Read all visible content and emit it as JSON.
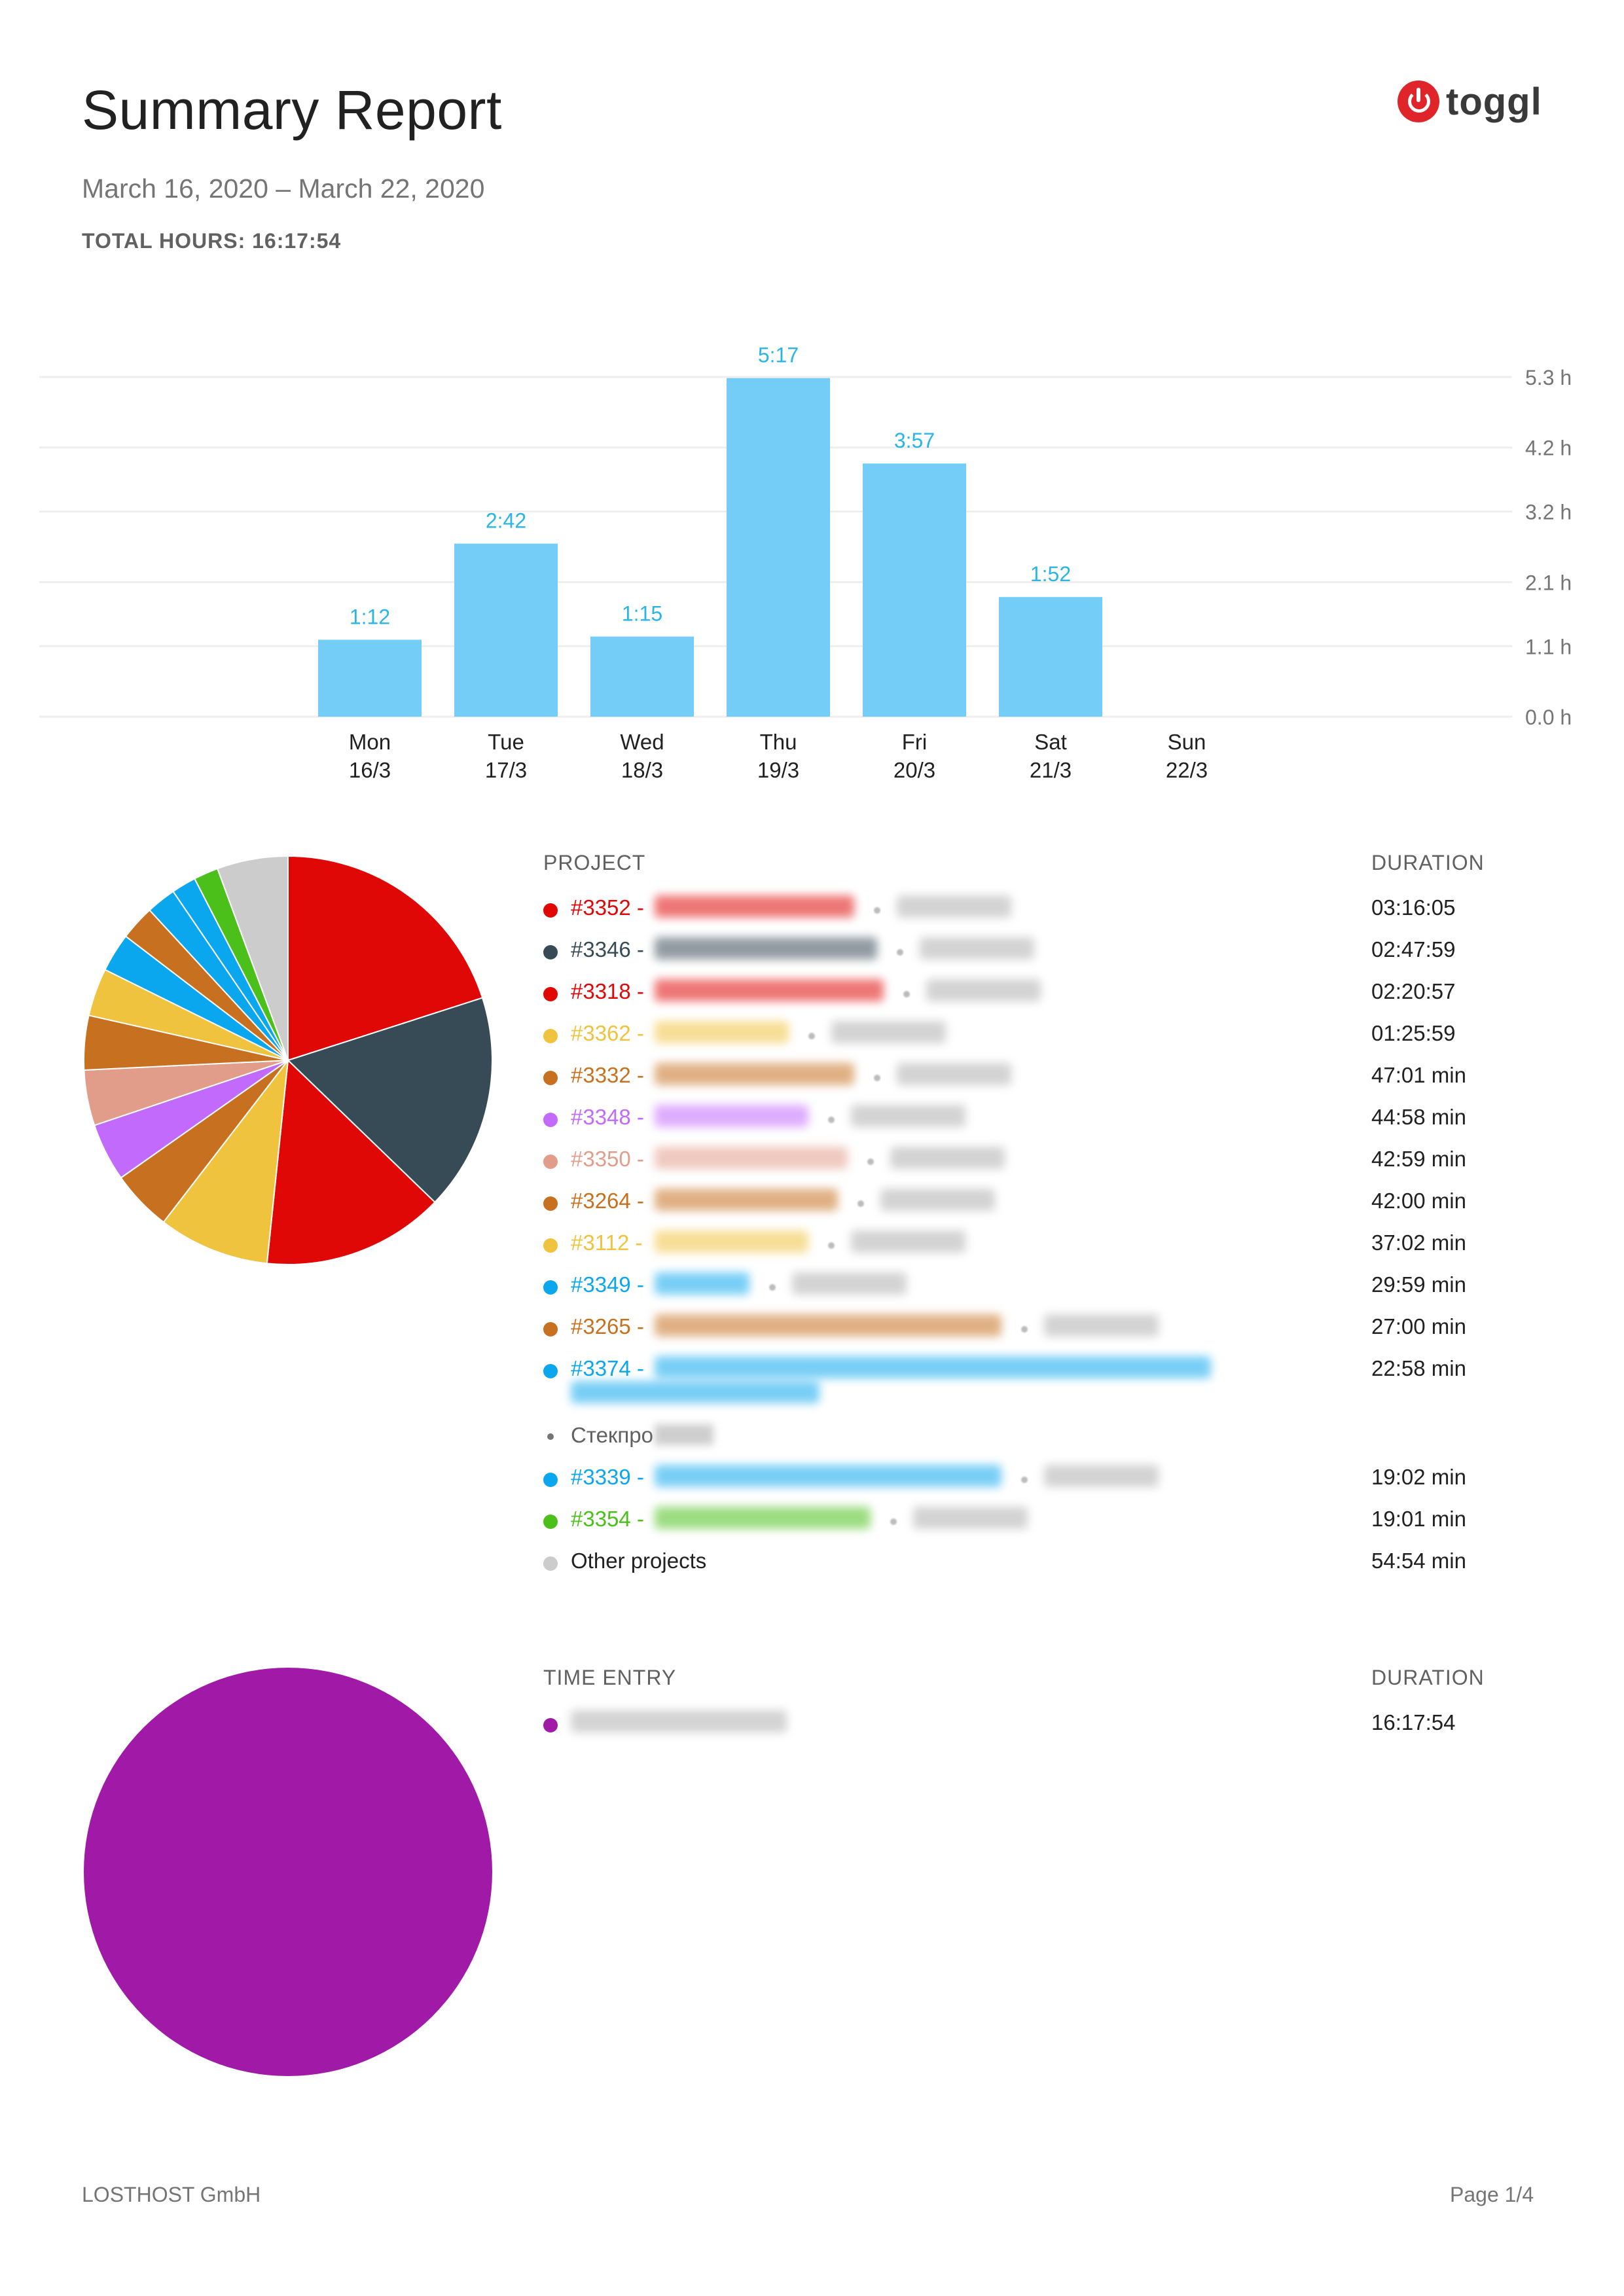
{
  "header": {
    "title": "Summary Report",
    "date_range": "March 16, 2020 – March 22, 2020",
    "total_label": "TOTAL HOURS: 16:17:54",
    "logo_text": "toggl"
  },
  "colors": {
    "bar": "#74cdf7",
    "bar_label": "#2bb5e6",
    "axis_text": "#757575",
    "grid": "#eeeeee",
    "brand": "#e0252a"
  },
  "chart_data": [
    {
      "type": "bar",
      "categories": [
        "Mon 16/3",
        "Tue 17/3",
        "Wed 18/3",
        "Thu 19/3",
        "Fri 20/3",
        "Sat 21/3",
        "Sun 22/3"
      ],
      "category_days": [
        "Mon",
        "Tue",
        "Wed",
        "Thu",
        "Fri",
        "Sat",
        "Sun"
      ],
      "category_dates": [
        "16/3",
        "17/3",
        "18/3",
        "19/3",
        "20/3",
        "21/3",
        "22/3"
      ],
      "values": [
        1.2,
        2.7,
        1.25,
        5.283,
        3.95,
        1.867,
        0
      ],
      "data_labels": [
        "1:12",
        "2:42",
        "1:15",
        "5:17",
        "3:57",
        "1:52",
        ""
      ],
      "yticks": [
        0.0,
        1.1,
        2.1,
        3.2,
        4.2,
        5.3
      ],
      "ytick_labels": [
        "0.0 h",
        "1.1 h",
        "2.1 h",
        "3.2 h",
        "4.2 h",
        "5.3 h"
      ],
      "ylim": [
        0,
        5.3
      ],
      "grid": true,
      "yaxis_side": "right"
    },
    {
      "type": "pie",
      "column_label": "PROJECT",
      "duration_label": "DURATION",
      "slices": [
        {
          "code": "#3352",
          "duration": "03:16:05",
          "minutes": 196.08,
          "color": "#e00707"
        },
        {
          "code": "#3346",
          "duration": "02:47:59",
          "minutes": 167.98,
          "color": "#374b56"
        },
        {
          "code": "#3318",
          "duration": "02:20:57",
          "minutes": 140.95,
          "color": "#e00707"
        },
        {
          "code": "#3362",
          "duration": "01:25:59",
          "minutes": 85.98,
          "color": "#f0c33f"
        },
        {
          "code": "#3332",
          "duration": "47:01 min",
          "minutes": 47.02,
          "color": "#c7701f"
        },
        {
          "code": "#3348",
          "duration": "44:58 min",
          "minutes": 44.97,
          "color": "#c26afc"
        },
        {
          "code": "#3350",
          "duration": "42:59 min",
          "minutes": 42.98,
          "color": "#e29d8a"
        },
        {
          "code": "#3264",
          "duration": "42:00 min",
          "minutes": 42.0,
          "color": "#c7701f"
        },
        {
          "code": "#3112",
          "duration": "37:02 min",
          "minutes": 37.03,
          "color": "#f0c33f"
        },
        {
          "code": "#3349",
          "duration": "29:59 min",
          "minutes": 29.98,
          "color": "#0ba7ee"
        },
        {
          "code": "#3265",
          "duration": "27:00 min",
          "minutes": 27.0,
          "color": "#c7701f"
        },
        {
          "code": "#3374",
          "duration": "22:58 min",
          "minutes": 22.97,
          "color": "#0ba7ee"
        },
        {
          "code": "#3339",
          "duration": "19:02 min",
          "minutes": 19.03,
          "color": "#0ba7ee"
        },
        {
          "code": "#3354",
          "duration": "19:01 min",
          "minutes": 19.02,
          "color": "#4cc01a"
        },
        {
          "code": "Other projects",
          "duration": "54:54 min",
          "minutes": 54.9,
          "color": "#cccccc"
        }
      ],
      "sub_entry": "Стекпро"
    },
    {
      "type": "pie",
      "column_label": "TIME ENTRY",
      "duration_label": "DURATION",
      "slices": [
        {
          "duration": "16:17:54",
          "minutes": 977.9,
          "color": "#a01aa7"
        }
      ]
    }
  ],
  "footer": {
    "company": "LOSTHOST GmbH",
    "page": "Page 1/4"
  }
}
